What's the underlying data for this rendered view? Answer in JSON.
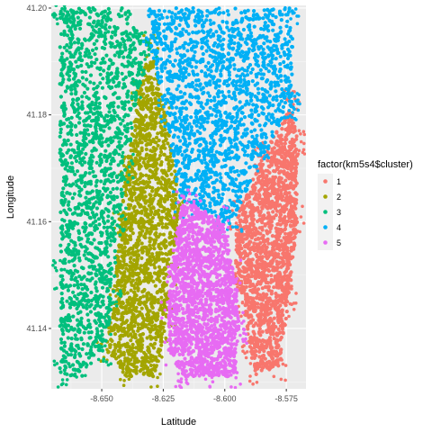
{
  "chart_data": {
    "type": "scatter",
    "title": "",
    "xlabel": "Latitude",
    "ylabel": "Longitude",
    "xlim": [
      -8.6705,
      -8.567
    ],
    "ylim": [
      41.1287,
      41.2005
    ],
    "x_ticks": [
      {
        "value": -8.65,
        "label": "-8.650"
      },
      {
        "value": -8.625,
        "label": "-8.625"
      },
      {
        "value": -8.6,
        "label": "-8.600"
      },
      {
        "value": -8.575,
        "label": "-8.575"
      }
    ],
    "y_ticks": [
      {
        "value": 41.14,
        "label": "41.14"
      },
      {
        "value": 41.16,
        "label": "41.16"
      },
      {
        "value": 41.18,
        "label": "41.18"
      },
      {
        "value": 41.2,
        "label": "41.20"
      }
    ],
    "grid": true,
    "legend": {
      "title": "factor(km5s4$cluster)",
      "position": "right",
      "entries": [
        {
          "label": "1",
          "color": "#F8766D"
        },
        {
          "label": "2",
          "color": "#A3A500"
        },
        {
          "label": "3",
          "color": "#00BF7D"
        },
        {
          "label": "4",
          "color": "#00B0F6"
        },
        {
          "label": "5",
          "color": "#E76BF3"
        }
      ]
    },
    "series": [
      {
        "name": "1",
        "color": "#F8766D",
        "region": [
          [
            -8.5725,
            41.182
          ],
          [
            -8.5705,
            41.175
          ],
          [
            -8.5705,
            41.16
          ],
          [
            -8.574,
            41.145
          ],
          [
            -8.578,
            41.133
          ],
          [
            -8.587,
            41.131
          ],
          [
            -8.59,
            41.136
          ],
          [
            -8.592,
            41.145
          ],
          [
            -8.596,
            41.15
          ],
          [
            -8.595,
            41.161
          ],
          [
            -8.585,
            41.172
          ]
        ]
      },
      {
        "name": "2",
        "color": "#A3A500",
        "region": [
          [
            -8.63,
            41.193
          ],
          [
            -8.624,
            41.18
          ],
          [
            -8.618,
            41.163
          ],
          [
            -8.622,
            41.151
          ],
          [
            -8.623,
            41.143
          ],
          [
            -8.626,
            41.136
          ],
          [
            -8.628,
            41.131
          ],
          [
            -8.64,
            41.131
          ],
          [
            -8.649,
            41.136
          ],
          [
            -8.645,
            41.145
          ],
          [
            -8.643,
            41.16
          ],
          [
            -8.64,
            41.17
          ],
          [
            -8.635,
            41.185
          ]
        ]
      },
      {
        "name": "3",
        "color": "#00BF7D",
        "region": [
          [
            -8.667,
            41.2
          ],
          [
            -8.64,
            41.2
          ],
          [
            -8.63,
            41.193
          ],
          [
            -8.635,
            41.185
          ],
          [
            -8.64,
            41.17
          ],
          [
            -8.643,
            41.16
          ],
          [
            -8.645,
            41.145
          ],
          [
            -8.649,
            41.136
          ],
          [
            -8.658,
            41.131
          ],
          [
            -8.667,
            41.131
          ],
          [
            -8.667,
            41.15
          ]
        ]
      },
      {
        "name": "4",
        "color": "#00B0F6",
        "region": [
          [
            -8.63,
            41.2
          ],
          [
            -8.5725,
            41.2
          ],
          [
            -8.5725,
            41.182
          ],
          [
            -8.585,
            41.172
          ],
          [
            -8.596,
            41.161
          ],
          [
            -8.601,
            41.16
          ],
          [
            -8.612,
            41.163
          ],
          [
            -8.618,
            41.163
          ],
          [
            -8.624,
            41.18
          ],
          [
            -8.63,
            41.193
          ]
        ]
      },
      {
        "name": "5",
        "color": "#E76BF3",
        "region": [
          [
            -8.618,
            41.163
          ],
          [
            -8.612,
            41.163
          ],
          [
            -8.601,
            41.16
          ],
          [
            -8.596,
            41.15
          ],
          [
            -8.594,
            41.14
          ],
          [
            -8.596,
            41.131
          ],
          [
            -8.607,
            41.131
          ],
          [
            -8.617,
            41.131
          ],
          [
            -8.622,
            41.135
          ],
          [
            -8.623,
            41.143
          ],
          [
            -8.622,
            41.151
          ]
        ]
      }
    ]
  }
}
